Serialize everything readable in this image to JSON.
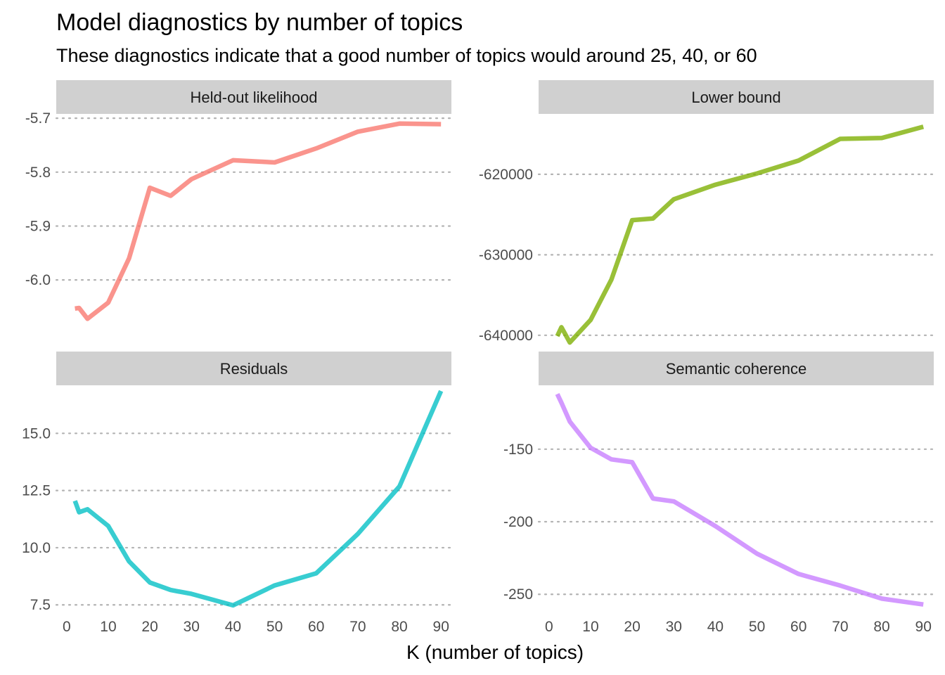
{
  "title": "Model diagnostics by number of topics",
  "subtitle": "These diagnostics indicate that a good number of topics would around 25, 40, or 60",
  "chart_data": {
    "type": "line",
    "title": "Model diagnostics by number of topics",
    "subtitle": "These diagnostics indicate that a good number of topics would around 25, 40, or 60",
    "xlabel": "K (number of topics)",
    "ylabel": "",
    "grid": "horizontal dotted major gridlines",
    "legend": "none",
    "x_ticks": [
      0,
      10,
      20,
      30,
      40,
      50,
      60,
      70,
      80,
      90
    ],
    "x_tick_labels": [
      "0",
      "10",
      "20",
      "30",
      "40",
      "50",
      "60",
      "70",
      "80",
      "90"
    ],
    "xlim": [
      -2.5,
      92.5
    ],
    "panels": [
      {
        "name": "Held-out likelihood",
        "color": "#F8766D",
        "ylim": [
          -6.125,
          -5.692
        ],
        "y_ticks": [
          -6.0,
          -5.9,
          -5.8,
          -5.7
        ],
        "y_tick_labels": [
          "-6.0",
          "-5.9",
          "-5.8",
          "-5.7"
        ],
        "x": [
          2,
          3,
          5,
          10,
          15,
          20,
          25,
          30,
          40,
          50,
          60,
          70,
          80,
          90
        ],
        "y": [
          -6.053,
          -6.052,
          -6.072,
          -6.042,
          -5.96,
          -5.829,
          -5.844,
          -5.813,
          -5.778,
          -5.782,
          -5.756,
          -5.725,
          -5.71,
          -5.711
        ]
      },
      {
        "name": "Lower bound",
        "color": "#7CAE00",
        "ylim": [
          -641500,
          -612500
        ],
        "y_ticks": [
          -640000,
          -630000,
          -620000
        ],
        "y_tick_labels": [
          "-640000",
          "-630000",
          "-620000"
        ],
        "x": [
          2,
          3,
          5,
          10,
          15,
          20,
          25,
          30,
          40,
          50,
          60,
          70,
          80,
          90
        ],
        "y": [
          -640100,
          -639000,
          -640900,
          -638100,
          -633100,
          -625700,
          -625500,
          -623100,
          -621300,
          -619900,
          -618300,
          -615600,
          -615500,
          -614100
        ]
      },
      {
        "name": "Residuals",
        "color": "#00BFC4",
        "ylim": [
          7.2,
          17.1
        ],
        "y_ticks": [
          7.5,
          10.0,
          12.5,
          15.0
        ],
        "y_tick_labels": [
          "7.5",
          "10.0",
          "12.5",
          "15.0"
        ],
        "x": [
          2,
          3,
          5,
          10,
          15,
          20,
          25,
          30,
          40,
          50,
          60,
          70,
          80,
          90
        ],
        "y": [
          12.05,
          11.55,
          11.68,
          10.95,
          9.4,
          8.48,
          8.15,
          7.98,
          7.48,
          8.35,
          8.88,
          10.6,
          12.68,
          16.85
        ]
      },
      {
        "name": "Semantic coherence",
        "color": "#C77CFF",
        "ylim": [
          -262,
          -106
        ],
        "y_ticks": [
          -250,
          -200,
          -150
        ],
        "y_tick_labels": [
          "-250",
          "-200",
          "-150"
        ],
        "x": [
          2,
          3,
          5,
          10,
          15,
          20,
          25,
          30,
          40,
          50,
          60,
          70,
          80,
          90
        ],
        "y": [
          -112,
          -118,
          -131,
          -149,
          -157,
          -159,
          -184,
          -186,
          -203,
          -222,
          -236,
          -244,
          -253,
          -257
        ]
      }
    ]
  }
}
